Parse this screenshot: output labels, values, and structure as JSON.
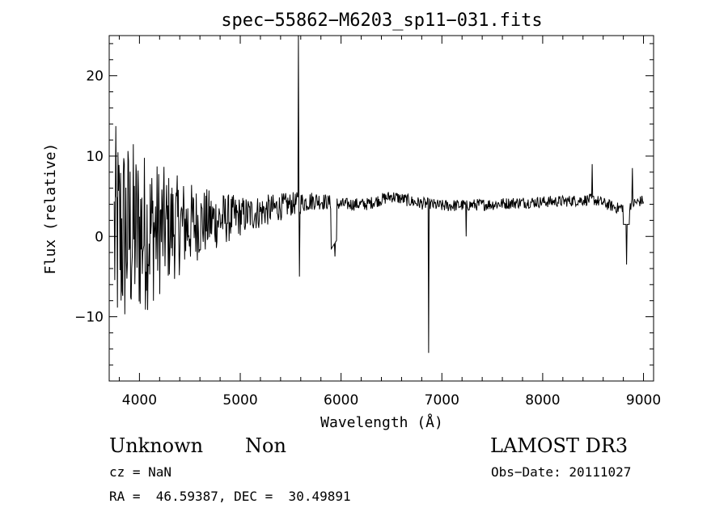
{
  "chart_data": {
    "type": "line",
    "title": "spec−55862−M6203_sp11−031.fits",
    "xlabel": "Wavelength (Å)",
    "ylabel": "Flux (relative)",
    "xlim": [
      3700,
      9100
    ],
    "ylim": [
      -18,
      25
    ],
    "x_ticks": [
      4000,
      5000,
      6000,
      7000,
      8000,
      9000
    ],
    "x_tick_labels": [
      "4000",
      "5000",
      "6000",
      "7000",
      "8000",
      "9000"
    ],
    "y_ticks": [
      -10,
      0,
      10,
      20
    ],
    "y_tick_labels": [
      "−10",
      "0",
      "10",
      "20"
    ],
    "line_color": "#000000",
    "series": [
      {
        "name": "flux",
        "continuum_x": [
          3750,
          4000,
          4250,
          4500,
          4750,
          5000,
          5250,
          5500,
          5750,
          6000,
          6250,
          6500,
          6750,
          7000,
          7250,
          7500,
          7750,
          8000,
          8250,
          8500,
          8750,
          9000
        ],
        "continuum_y": [
          0,
          0.5,
          1,
          1.5,
          2,
          2.5,
          3.2,
          4,
          4.5,
          4,
          4,
          5,
          4.2,
          3.8,
          3.9,
          4,
          4.2,
          4.3,
          4.4,
          4.6,
          3.5,
          4.5
        ],
        "noise_x": [
          3750,
          4000,
          4300,
          4600,
          5000,
          5500,
          6000,
          9000
        ],
        "noise_amp": [
          14,
          11,
          7,
          4.5,
          2.5,
          1.5,
          0.8,
          0.7
        ],
        "features": [
          {
            "x": 5577,
            "y": 25
          },
          {
            "x": 5585,
            "y": -5
          },
          {
            "x": 5940,
            "y": -2.5
          },
          {
            "x": 6867,
            "y": -14.5
          },
          {
            "x": 7240,
            "y": 0
          },
          {
            "x": 8490,
            "y": 9
          },
          {
            "x": 8830,
            "y": -3.5
          },
          {
            "x": 8890,
            "y": 8.5
          }
        ]
      }
    ]
  },
  "info": {
    "class": "Unknown",
    "subclass": "Non",
    "survey": "LAMOST DR3",
    "cz": "cz = NaN",
    "obs_date": "Obs−Date: 20111027",
    "coords": "RA =  46.59387, DEC =  30.49891"
  }
}
